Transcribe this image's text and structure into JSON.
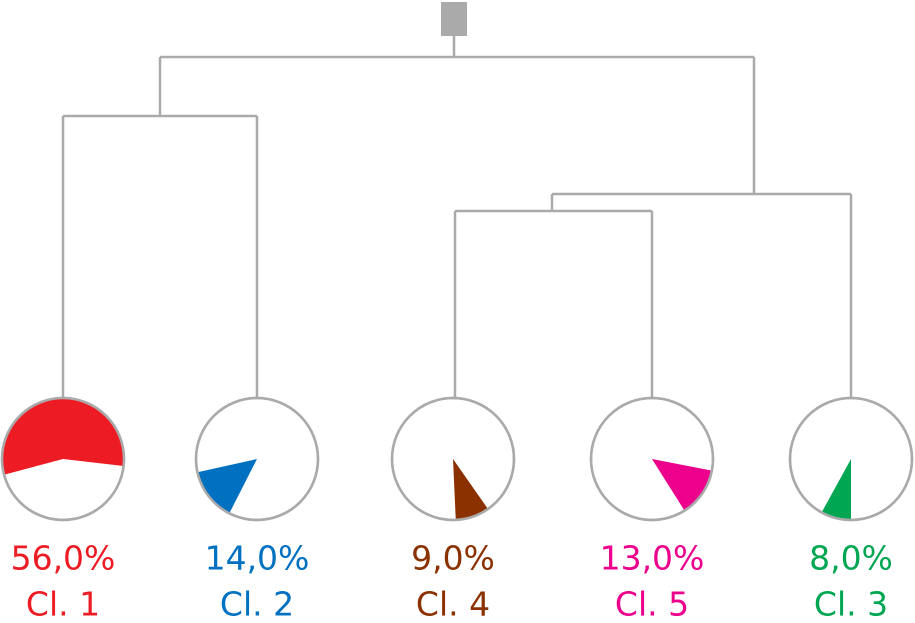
{
  "chart_data": {
    "type": "pie",
    "categories": [
      "Cl. 1",
      "Cl. 2",
      "Cl. 4",
      "Cl. 5",
      "Cl. 3"
    ],
    "values": [
      56,
      14,
      9,
      13,
      8
    ],
    "value_labels": [
      "56,0%",
      "14,0%",
      "9,0%",
      "13,0%",
      "8,0%"
    ],
    "colors": [
      "#ed1c24",
      "#0070c0",
      "#8b3100",
      "#ec008c",
      "#00a651"
    ]
  }
}
